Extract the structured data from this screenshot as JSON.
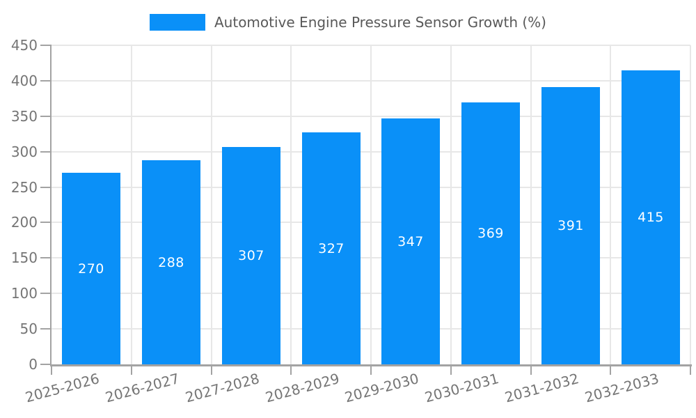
{
  "legend": {
    "label": "Automotive Engine Pressure Sensor Growth (%)",
    "swatch_color": "#0a90f8"
  },
  "chart_data": {
    "type": "bar",
    "title": "Automotive Engine Pressure Sensor Growth (%)",
    "categories": [
      "2025-2026",
      "2026-2027",
      "2027-2028",
      "2028-2029",
      "2029-2030",
      "2030-2031",
      "2031-2032",
      "2032-2033"
    ],
    "values": [
      270,
      288,
      307,
      327,
      347,
      369,
      391,
      415
    ],
    "xlabel": "",
    "ylabel": "",
    "ylim": [
      0,
      450
    ],
    "y_ticks": [
      0,
      50,
      100,
      150,
      200,
      250,
      300,
      350,
      400,
      450
    ],
    "grid": true,
    "legend_position": "top-center",
    "bar_color": "#0a90f8",
    "value_label_color": "#ffffff",
    "x_tick_rotation_deg": -15
  },
  "colors": {
    "background": "#ffffff",
    "axis": "#a3a3a3",
    "grid": "#e7e7e7",
    "tick_text": "#757575",
    "legend_text": "#595959"
  }
}
